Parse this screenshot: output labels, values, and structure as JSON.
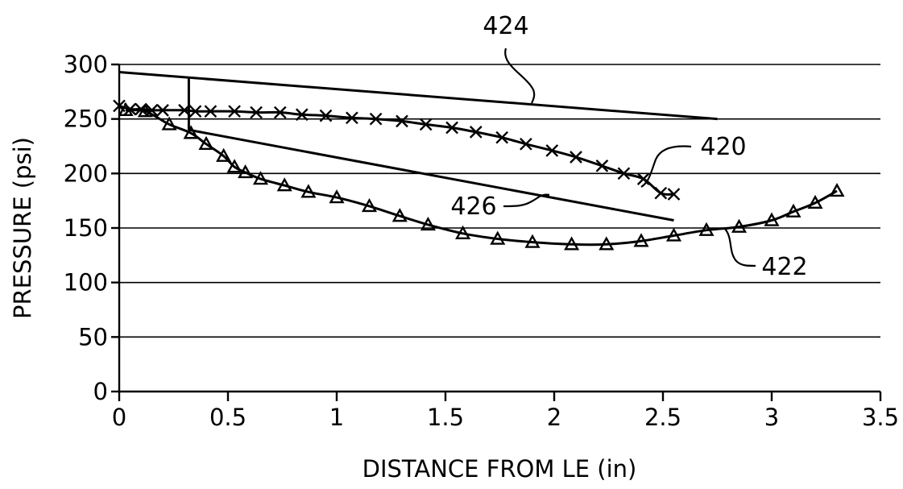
{
  "chart_data": {
    "type": "line",
    "xlabel": "DISTANCE FROM LE (in)",
    "ylabel": "PRESSURE (psi)",
    "xlim": [
      0,
      3.5
    ],
    "ylim": [
      0,
      300
    ],
    "x_ticks": [
      "0",
      "0.5",
      "1",
      "1.5",
      "2",
      "2.5",
      "3",
      "3.5"
    ],
    "y_ticks": [
      "0",
      "50",
      "100",
      "150",
      "200",
      "250",
      "300"
    ],
    "grid": "horizontal",
    "series": [
      {
        "name": "420",
        "marker": "x",
        "x": [
          0,
          0.05,
          0.1,
          0.15,
          0.2,
          0.3,
          0.35,
          0.42,
          0.53,
          0.63,
          0.74,
          0.84,
          0.95,
          1.07,
          1.18,
          1.3,
          1.41,
          1.53,
          1.64,
          1.76,
          1.87,
          1.99,
          2.1,
          2.22,
          2.32,
          2.41,
          2.49,
          2.55
        ],
        "y": [
          262,
          259,
          259,
          258,
          258,
          258,
          257,
          257,
          257,
          256,
          256,
          254,
          253,
          251,
          250,
          248,
          245,
          242,
          238,
          233,
          227,
          221,
          215,
          207,
          200,
          195,
          182,
          181
        ]
      },
      {
        "name": "422",
        "marker": "triangle",
        "x": [
          0.03,
          0.12,
          0.23,
          0.33,
          0.4,
          0.48,
          0.53,
          0.58,
          0.65,
          0.76,
          0.87,
          1.0,
          1.15,
          1.29,
          1.42,
          1.58,
          1.74,
          1.9,
          2.08,
          2.24,
          2.4,
          2.55,
          2.7,
          2.85,
          3.0,
          3.1,
          3.2,
          3.3
        ],
        "y": [
          258,
          257,
          245,
          237,
          227,
          216,
          206,
          201,
          195,
          189,
          183,
          178,
          170,
          161,
          153,
          145,
          140,
          137,
          135,
          135,
          138,
          143,
          148,
          151,
          157,
          165,
          173,
          184
        ]
      },
      {
        "name": "424",
        "x": [
          0,
          2.75
        ],
        "y": [
          293,
          250
        ]
      },
      {
        "name": "426",
        "x": [
          0.32,
          2.55
        ],
        "y": [
          240,
          157
        ]
      }
    ],
    "annotations": [
      "424",
      "420",
      "426",
      "422"
    ]
  }
}
